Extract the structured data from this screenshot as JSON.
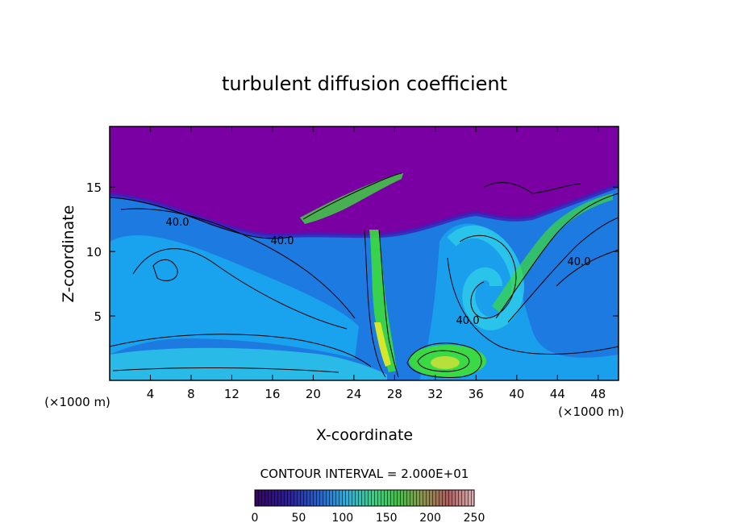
{
  "chart_data": {
    "type": "heatmap",
    "title": "turbulent diffusion coefficient",
    "xlabel": "X-coordinate",
    "ylabel": "Z-coordinate",
    "x_unit": "(×1000 m)",
    "x_unit_right": "(×1000 m)",
    "xlim": [
      0,
      50
    ],
    "ylim": [
      0,
      19.7
    ],
    "xticks": [
      4,
      8,
      12,
      16,
      20,
      24,
      28,
      32,
      36,
      40,
      44,
      48
    ],
    "yticks": [
      5,
      10,
      15
    ],
    "contour_interval_text": "CONTOUR INTERVAL = 2.000E+01",
    "contour_labels": [
      {
        "text": "40.0",
        "x": 8.3,
        "z": 12.2
      },
      {
        "text": "40.0",
        "x": 16.7,
        "z": 10.8
      },
      {
        "text": "40.0",
        "x": 45.3,
        "z": 9.2
      },
      {
        "text": "40.0",
        "x": 35.2,
        "z": 4.6
      }
    ],
    "colorbar": {
      "min": 0,
      "max": 250,
      "ticks": [
        0,
        50,
        100,
        150,
        200,
        250
      ]
    },
    "grid": false
  },
  "colors": {
    "upper_layer": "#7b00a4",
    "mid_blue": "#1c7ae0",
    "light_blue": "#1aa6ee",
    "cyan": "#2cc6e8",
    "green": "#3cdc3c",
    "yellow": "#d8e62a",
    "contour": "#000000"
  }
}
